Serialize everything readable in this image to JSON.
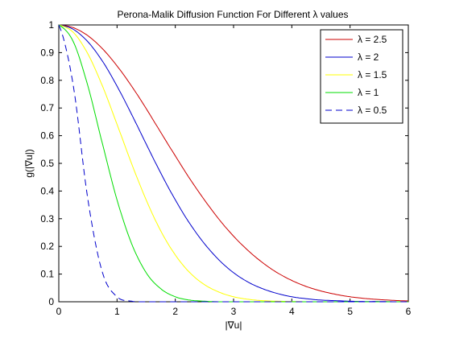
{
  "chart_data": {
    "type": "line",
    "title": "Perona-Malik Diffusion Function For Different λ values",
    "xlabel": "|∇u|",
    "ylabel": "g(|∇u|)",
    "xlim": [
      0,
      6
    ],
    "ylim": [
      0,
      1
    ],
    "xticks": [
      "0",
      "1",
      "2",
      "3",
      "4",
      "5",
      "6"
    ],
    "yticks": [
      "0",
      "0.1",
      "0.2",
      "0.3",
      "0.4",
      "0.5",
      "0.6",
      "0.7",
      "0.8",
      "0.9",
      "1"
    ],
    "grid": false,
    "legend_position": "top-right",
    "x": [
      0,
      0.25,
      0.5,
      0.75,
      1.0,
      1.25,
      1.5,
      1.75,
      2.0,
      2.25,
      2.5,
      2.75,
      3.0,
      3.25,
      3.5,
      3.75,
      4.0,
      4.25,
      4.5,
      4.75,
      5.0,
      5.25,
      5.5,
      5.75,
      6.0
    ],
    "series": [
      {
        "name": "λ = 2.5",
        "color": "#cc0000",
        "dash": "solid",
        "values": [
          1.0,
          0.99,
          0.961,
          0.914,
          0.852,
          0.779,
          0.698,
          0.612,
          0.527,
          0.444,
          0.368,
          0.298,
          0.237,
          0.185,
          0.141,
          0.105,
          0.077,
          0.055,
          0.039,
          0.027,
          0.018,
          0.012,
          0.008,
          0.005,
          0.003
        ]
      },
      {
        "name": "λ = 2",
        "color": "#0000cc",
        "dash": "solid",
        "values": [
          1.0,
          0.984,
          0.939,
          0.869,
          0.779,
          0.677,
          0.57,
          0.465,
          0.368,
          0.282,
          0.21,
          0.151,
          0.105,
          0.071,
          0.047,
          0.03,
          0.018,
          0.011,
          0.006,
          0.004,
          0.002,
          0.001,
          0.001,
          0.0,
          0.0
        ]
      },
      {
        "name": "λ = 1.5",
        "color": "#ffff00",
        "dash": "solid",
        "values": [
          1.0,
          0.973,
          0.895,
          0.779,
          0.641,
          0.499,
          0.368,
          0.256,
          0.169,
          0.105,
          0.062,
          0.035,
          0.018,
          0.009,
          0.004,
          0.002,
          0.001,
          0.0,
          0.0,
          0.0,
          0.0,
          0.0,
          0.0,
          0.0,
          0.0
        ]
      },
      {
        "name": "λ = 1",
        "color": "#00dd00",
        "dash": "solid",
        "values": [
          1.0,
          0.939,
          0.779,
          0.57,
          0.368,
          0.21,
          0.105,
          0.047,
          0.018,
          0.006,
          0.002,
          0.0,
          0.0,
          0.0,
          0.0,
          0.0,
          0.0,
          0.0,
          0.0,
          0.0,
          0.0,
          0.0,
          0.0,
          0.0,
          0.0
        ]
      },
      {
        "name": "λ = 0.5",
        "color": "#0000cc",
        "dash": "dashed",
        "values": [
          1.0,
          0.779,
          0.368,
          0.105,
          0.018,
          0.002,
          0.0,
          0.0,
          0.0,
          0.0,
          0.0,
          0.0,
          0.0,
          0.0,
          0.0,
          0.0,
          0.0,
          0.0,
          0.0,
          0.0,
          0.0,
          0.0,
          0.0,
          0.0,
          0.0
        ]
      }
    ]
  }
}
